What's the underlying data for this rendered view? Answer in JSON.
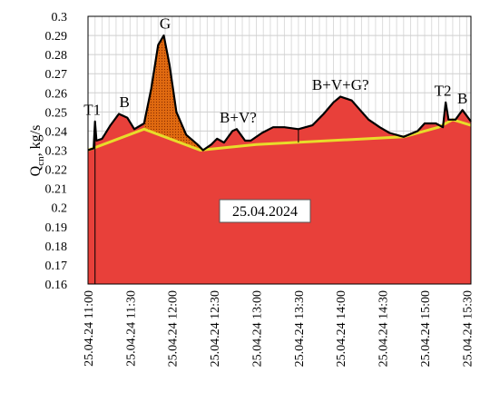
{
  "chart_data": {
    "type": "area",
    "ylabel": {
      "main": "Q",
      "sub": "cn",
      "rest": ", kg/s"
    },
    "ylim": [
      0.16,
      0.3
    ],
    "ytick_values": [
      0.16,
      0.17,
      0.18,
      0.19,
      0.2,
      0.21,
      0.22,
      0.23,
      0.24,
      0.25,
      0.26,
      0.27,
      0.28,
      0.29,
      0.3
    ],
    "ytick_labels": [
      "0.16",
      "0.17",
      "0.18",
      "0.19",
      "0.2",
      "0.21",
      "0.22",
      "0.23",
      "0.24",
      "0.25",
      "0.26",
      "0.27",
      "0.28",
      "0.29",
      "0.3"
    ],
    "xlim": [
      "11:00",
      "15:33"
    ],
    "xtick_times": [
      "11:00",
      "11:30",
      "12:00",
      "12:30",
      "13:00",
      "13:30",
      "14:00",
      "14:30",
      "15:00",
      "15:30"
    ],
    "xtick_labels": [
      "25.04.24 11:00",
      "25.04.24 11:30",
      "25.04.24 12:00",
      "25.04.24 12:30",
      "25.04.24 13:00",
      "25.04.24 13:30",
      "25.04.24 14:00",
      "25.04.24 14:30",
      "25.04.24 15:00",
      "25.04.24 15:30"
    ],
    "grid": true,
    "date_label": "25.04.2024",
    "series": [
      {
        "role": "total",
        "color": "#000000",
        "points": [
          [
            "11:00",
            0.23
          ],
          [
            "11:04",
            0.231
          ],
          [
            "11:05",
            0.245
          ],
          [
            "11:06",
            0.235
          ],
          [
            "11:10",
            0.236
          ],
          [
            "11:16",
            0.243
          ],
          [
            "11:22",
            0.249
          ],
          [
            "11:28",
            0.247
          ],
          [
            "11:33",
            0.241
          ],
          [
            "11:40",
            0.244
          ],
          [
            "11:45",
            0.262
          ],
          [
            "11:50",
            0.285
          ],
          [
            "11:54",
            0.29
          ],
          [
            "11:58",
            0.275
          ],
          [
            "12:03",
            0.25
          ],
          [
            "12:10",
            0.238
          ],
          [
            "12:18",
            0.233
          ],
          [
            "12:22",
            0.23
          ],
          [
            "12:28",
            0.233
          ],
          [
            "12:32",
            0.236
          ],
          [
            "12:37",
            0.234
          ],
          [
            "12:43",
            0.24
          ],
          [
            "12:46",
            0.241
          ],
          [
            "12:52",
            0.235
          ],
          [
            "12:56",
            0.235
          ],
          [
            "13:04",
            0.239
          ],
          [
            "13:12",
            0.242
          ],
          [
            "13:20",
            0.242
          ],
          [
            "13:30",
            0.241
          ],
          [
            "13:40",
            0.243
          ],
          [
            "13:48",
            0.249
          ],
          [
            "13:55",
            0.255
          ],
          [
            "14:00",
            0.258
          ],
          [
            "14:08",
            0.256
          ],
          [
            "14:14",
            0.251
          ],
          [
            "14:20",
            0.246
          ],
          [
            "14:28",
            0.242
          ],
          [
            "14:35",
            0.239
          ],
          [
            "14:45",
            0.237
          ],
          [
            "14:55",
            0.24
          ],
          [
            "15:00",
            0.244
          ],
          [
            "15:08",
            0.244
          ],
          [
            "15:13",
            0.242
          ],
          [
            "15:15",
            0.255
          ],
          [
            "15:17",
            0.246
          ],
          [
            "15:22",
            0.246
          ],
          [
            "15:27",
            0.251
          ],
          [
            "15:33",
            0.245
          ]
        ]
      },
      {
        "role": "baseline",
        "color": "#e8dc2a",
        "points": [
          [
            "11:00",
            0.23
          ],
          [
            "11:40",
            0.241
          ],
          [
            "12:20",
            0.23
          ],
          [
            "13:00",
            0.233
          ],
          [
            "14:45",
            0.237
          ],
          [
            "15:10",
            0.242
          ],
          [
            "15:20",
            0.246
          ],
          [
            "15:33",
            0.243
          ]
        ]
      }
    ],
    "fill_colors": {
      "main": "#e8403a",
      "peak": "#e06a10"
    },
    "annotations": [
      {
        "text": "T1",
        "x": "11:03",
        "y": 0.2485
      },
      {
        "text": "B",
        "x": "11:26",
        "y": 0.2525
      },
      {
        "text": "G",
        "x": "11:55",
        "y": 0.2935
      },
      {
        "text": "B+V?",
        "x": "12:47",
        "y": 0.2445
      },
      {
        "text": "B+V+G?",
        "x": "14:00",
        "y": 0.2615
      },
      {
        "text": "T2",
        "x": "15:13",
        "y": 0.2585
      },
      {
        "text": "B",
        "x": "15:27",
        "y": 0.2545
      }
    ]
  }
}
